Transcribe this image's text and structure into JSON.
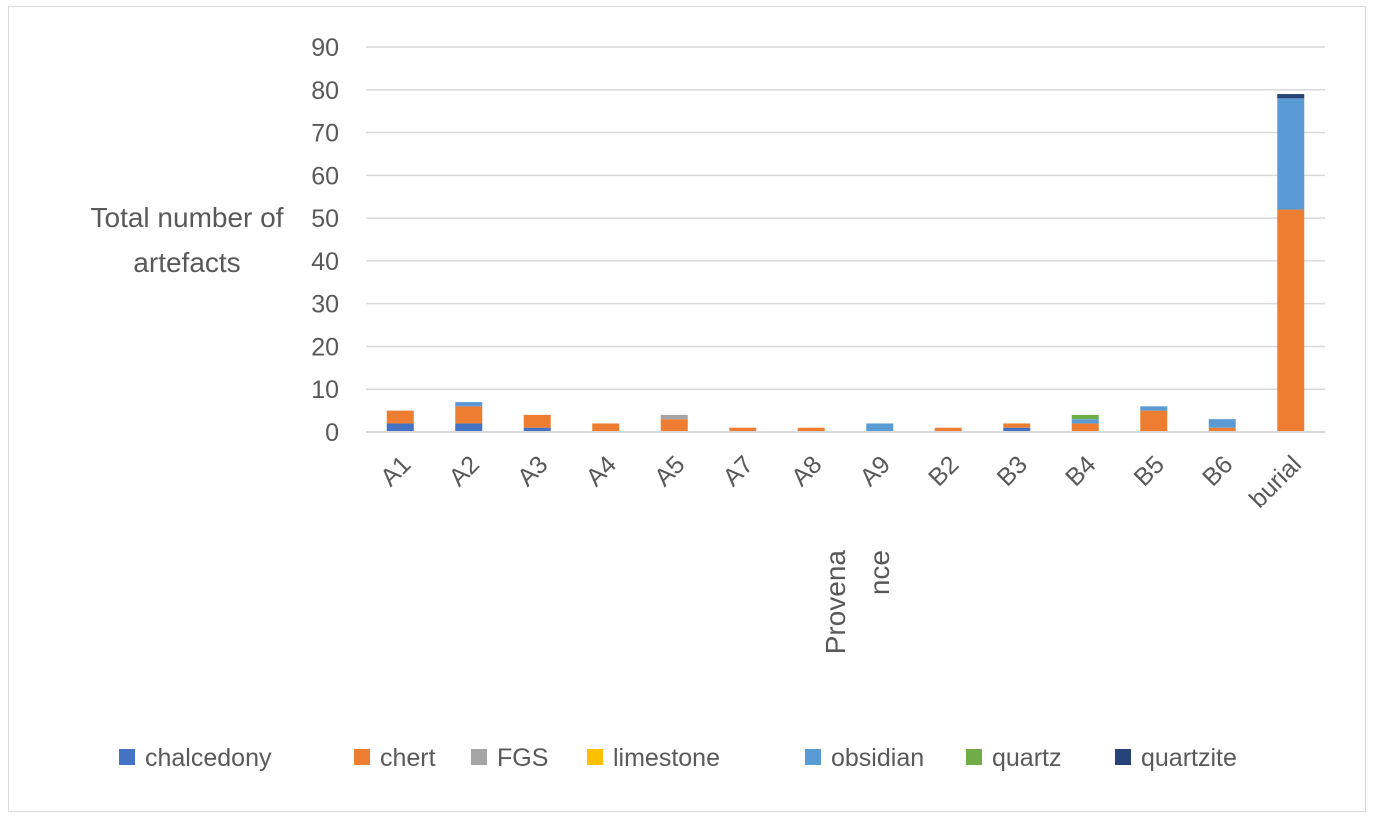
{
  "chart_data": {
    "type": "bar",
    "stacked": true,
    "categories": [
      "A1",
      "A2",
      "A3",
      "A4",
      "A5",
      "A7",
      "A8",
      "A9",
      "B2",
      "B3",
      "B4",
      "B5",
      "B6",
      "burial"
    ],
    "series": [
      {
        "name": "chalcedony",
        "color": "#4472c4",
        "values": [
          2,
          2,
          1,
          0,
          0,
          0,
          0,
          0,
          0,
          1,
          0,
          0,
          0,
          0
        ]
      },
      {
        "name": "chert",
        "color": "#ed7d31",
        "values": [
          3,
          4,
          3,
          2,
          3,
          1,
          1,
          0,
          1,
          1,
          2,
          5,
          1,
          52
        ]
      },
      {
        "name": "FGS",
        "color": "#a5a5a5",
        "values": [
          0,
          0,
          0,
          0,
          1,
          0,
          0,
          0,
          0,
          0,
          0,
          0,
          0,
          0
        ]
      },
      {
        "name": "limestone",
        "color": "#ffc000",
        "values": [
          0,
          0,
          0,
          0,
          0,
          0,
          0,
          0,
          0,
          0,
          0,
          0,
          0,
          0
        ]
      },
      {
        "name": "obsidian",
        "color": "#5b9bd5",
        "values": [
          0,
          1,
          0,
          0,
          0,
          0,
          0,
          2,
          0,
          0,
          1,
          1,
          2,
          26
        ]
      },
      {
        "name": "quartz",
        "color": "#70ad47",
        "values": [
          0,
          0,
          0,
          0,
          0,
          0,
          0,
          0,
          0,
          0,
          1,
          0,
          0,
          0
        ]
      },
      {
        "name": "quartzite",
        "color": "#264478",
        "values": [
          0,
          0,
          0,
          0,
          0,
          0,
          0,
          0,
          0,
          0,
          0,
          0,
          0,
          1
        ]
      }
    ],
    "ylabel_lines": [
      "Total number of",
      "artefacts"
    ],
    "xlabel_lines": [
      "Provena",
      "nce"
    ],
    "ylim": [
      0,
      90
    ],
    "yticks": [
      0,
      10,
      20,
      30,
      40,
      50,
      60,
      70,
      80,
      90
    ],
    "grid": true,
    "legend_position": "bottom"
  }
}
